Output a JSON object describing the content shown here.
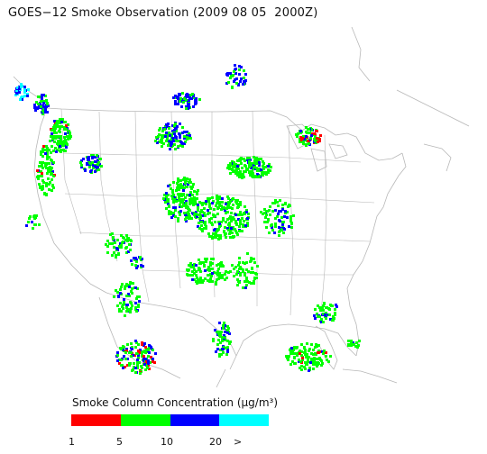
{
  "title": "GOES−12 Smoke Observation (2009 08 05  2000Z)",
  "legend": {
    "title": "Smoke Column Concentration (μg/m³)",
    "colors": [
      "#ff0000",
      "#00ff00",
      "#0000ff",
      "#00ffff"
    ],
    "ticks": [
      "1",
      "5",
      "10",
      "20",
      ">"
    ]
  },
  "colors": {
    "borders": "#b8b8b8",
    "background": "#ffffff"
  }
}
